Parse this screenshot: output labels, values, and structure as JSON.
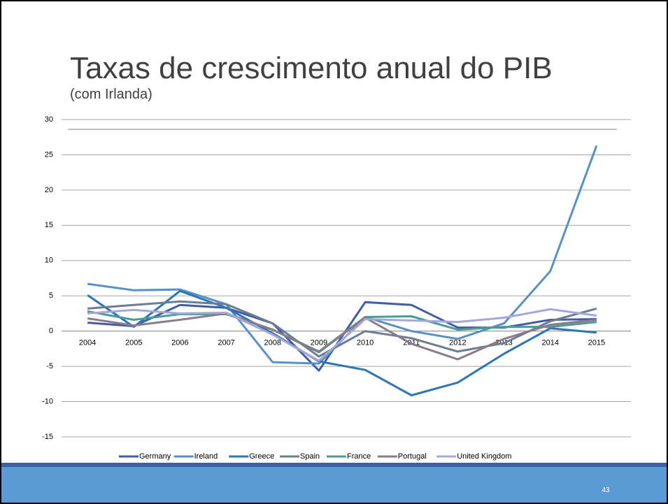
{
  "chart_data": {
    "type": "line",
    "title": "Taxas de crescimento anual do PIB",
    "subtitle": "(com Irlanda)",
    "page_number": "43",
    "categories": [
      "2004",
      "2005",
      "2006",
      "2007",
      "2008",
      "2009",
      "2010",
      "2011",
      "2012",
      "2013",
      "2014",
      "2015"
    ],
    "series": [
      {
        "name": "Germany",
        "color": "#3f5ba9",
        "values": [
          1.2,
          0.7,
          3.7,
          3.3,
          1.1,
          -5.6,
          4.1,
          3.7,
          0.5,
          0.5,
          1.6,
          1.7
        ]
      },
      {
        "name": "Ireland",
        "color": "#5591c6",
        "values": [
          6.7,
          5.8,
          5.9,
          3.8,
          -4.4,
          -4.6,
          2.0,
          0.0,
          -1.1,
          1.1,
          8.5,
          26.3
        ]
      },
      {
        "name": "Greece",
        "color": "#2e75b6",
        "values": [
          5.1,
          0.6,
          5.7,
          3.3,
          -0.3,
          -4.3,
          -5.5,
          -9.1,
          -7.3,
          -3.2,
          0.4,
          -0.2
        ]
      },
      {
        "name": "Spain",
        "color": "#6b7c93",
        "values": [
          3.2,
          3.7,
          4.2,
          3.8,
          1.1,
          -3.6,
          0.0,
          -1.0,
          -2.9,
          -1.7,
          1.4,
          3.2
        ]
      },
      {
        "name": "France",
        "color": "#4a9a9a",
        "values": [
          2.8,
          1.6,
          2.4,
          2.4,
          0.2,
          -2.9,
          2.0,
          2.1,
          0.2,
          0.6,
          0.6,
          1.3
        ]
      },
      {
        "name": "Portugal",
        "color": "#8a7a8a",
        "values": [
          1.8,
          0.8,
          1.6,
          2.5,
          0.2,
          -3.0,
          1.9,
          -1.8,
          -4.0,
          -1.1,
          0.9,
          1.6
        ]
      },
      {
        "name": "United Kingdom",
        "color": "#a3a8d4",
        "values": [
          2.5,
          3.0,
          2.5,
          2.6,
          -0.5,
          -4.2,
          1.7,
          1.5,
          1.3,
          1.9,
          3.1,
          2.2
        ]
      }
    ],
    "ylim": [
      -15,
      30
    ],
    "yticks": [
      -15,
      -10,
      -5,
      0,
      5,
      10,
      15,
      20,
      25,
      30
    ],
    "grid": true,
    "legend": "bottom"
  }
}
